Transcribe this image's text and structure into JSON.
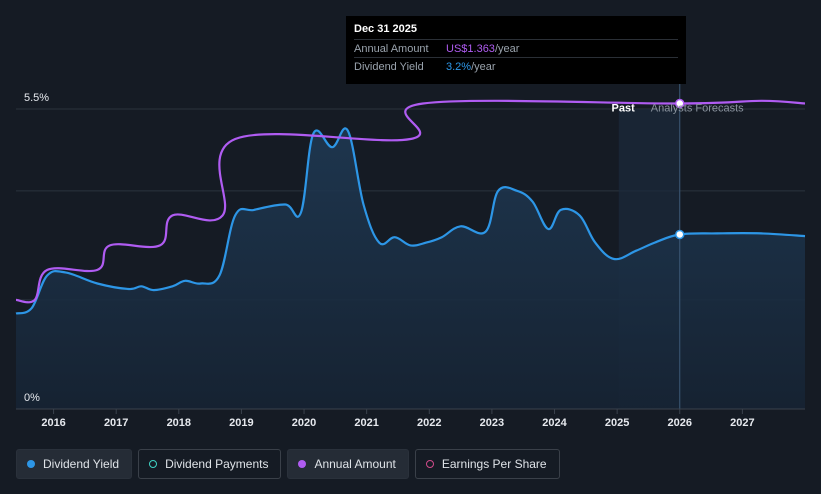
{
  "tooltip": {
    "date": "Dec 31 2025",
    "rows": [
      {
        "label": "Annual Amount",
        "value": "US$1.363",
        "unit": "/year"
      },
      {
        "label": "Dividend Yield",
        "value": "3.2%",
        "unit": "/year"
      }
    ]
  },
  "legend": [
    {
      "label": "Dividend Yield",
      "color": "#2d96e6",
      "filled": true,
      "active": true
    },
    {
      "label": "Dividend Payments",
      "color": "#3fd4c5",
      "filled": false,
      "active": false
    },
    {
      "label": "Annual Amount",
      "color": "#b05cf2",
      "filled": true,
      "active": true
    },
    {
      "label": "Earnings Per Share",
      "color": "#d04b8a",
      "filled": false,
      "active": false
    }
  ],
  "chart_data": {
    "type": "line",
    "y_tick_labels": [
      "5.5%",
      "0%"
    ],
    "ylim": [
      0,
      5.5
    ],
    "xlim": [
      2015.4,
      2028.0
    ],
    "x_ticks": [
      2016,
      2017,
      2018,
      2019,
      2020,
      2021,
      2022,
      2023,
      2024,
      2025,
      2026,
      2027
    ],
    "past_label": "Past",
    "forecast_label": "Analysts Forecasts",
    "forecast_start": 2026.0,
    "colors": {
      "yield": "#2d96e6",
      "amount": "#b05cf2"
    },
    "series": [
      {
        "name": "Dividend Yield",
        "x": [
          2015.4,
          2015.65,
          2015.9,
          2016.2,
          2016.7,
          2017.2,
          2017.4,
          2017.6,
          2017.9,
          2018.1,
          2018.35,
          2018.65,
          2018.9,
          2019.2,
          2019.7,
          2019.95,
          2020.15,
          2020.45,
          2020.7,
          2020.95,
          2021.2,
          2021.45,
          2021.7,
          2021.95,
          2022.2,
          2022.5,
          2022.9,
          2023.1,
          2023.4,
          2023.65,
          2023.9,
          2024.1,
          2024.4,
          2024.65,
          2024.95,
          2025.3,
          2025.6,
          2026.0,
          2026.6,
          2027.3,
          2028.0
        ],
        "y": [
          1.75,
          1.85,
          2.45,
          2.5,
          2.3,
          2.2,
          2.25,
          2.18,
          2.25,
          2.35,
          2.3,
          2.45,
          3.55,
          3.65,
          3.75,
          3.6,
          5.05,
          4.8,
          5.1,
          3.75,
          3.05,
          3.15,
          3.0,
          3.05,
          3.15,
          3.35,
          3.25,
          4.0,
          4.0,
          3.8,
          3.3,
          3.65,
          3.55,
          3.05,
          2.75,
          2.9,
          3.05,
          3.2,
          3.22,
          3.22,
          3.17
        ]
      },
      {
        "name": "Annual Amount",
        "x": [
          2015.4,
          2015.7,
          2015.9,
          2016.7,
          2016.9,
          2017.7,
          2017.9,
          2018.7,
          2018.9,
          2021.7,
          2021.9,
          2026.0,
          2027.3,
          2028.0
        ],
        "y": [
          2.0,
          2.0,
          2.55,
          2.55,
          3.0,
          3.0,
          3.55,
          3.55,
          4.95,
          4.95,
          5.6,
          5.6,
          5.65,
          5.6
        ]
      }
    ]
  }
}
